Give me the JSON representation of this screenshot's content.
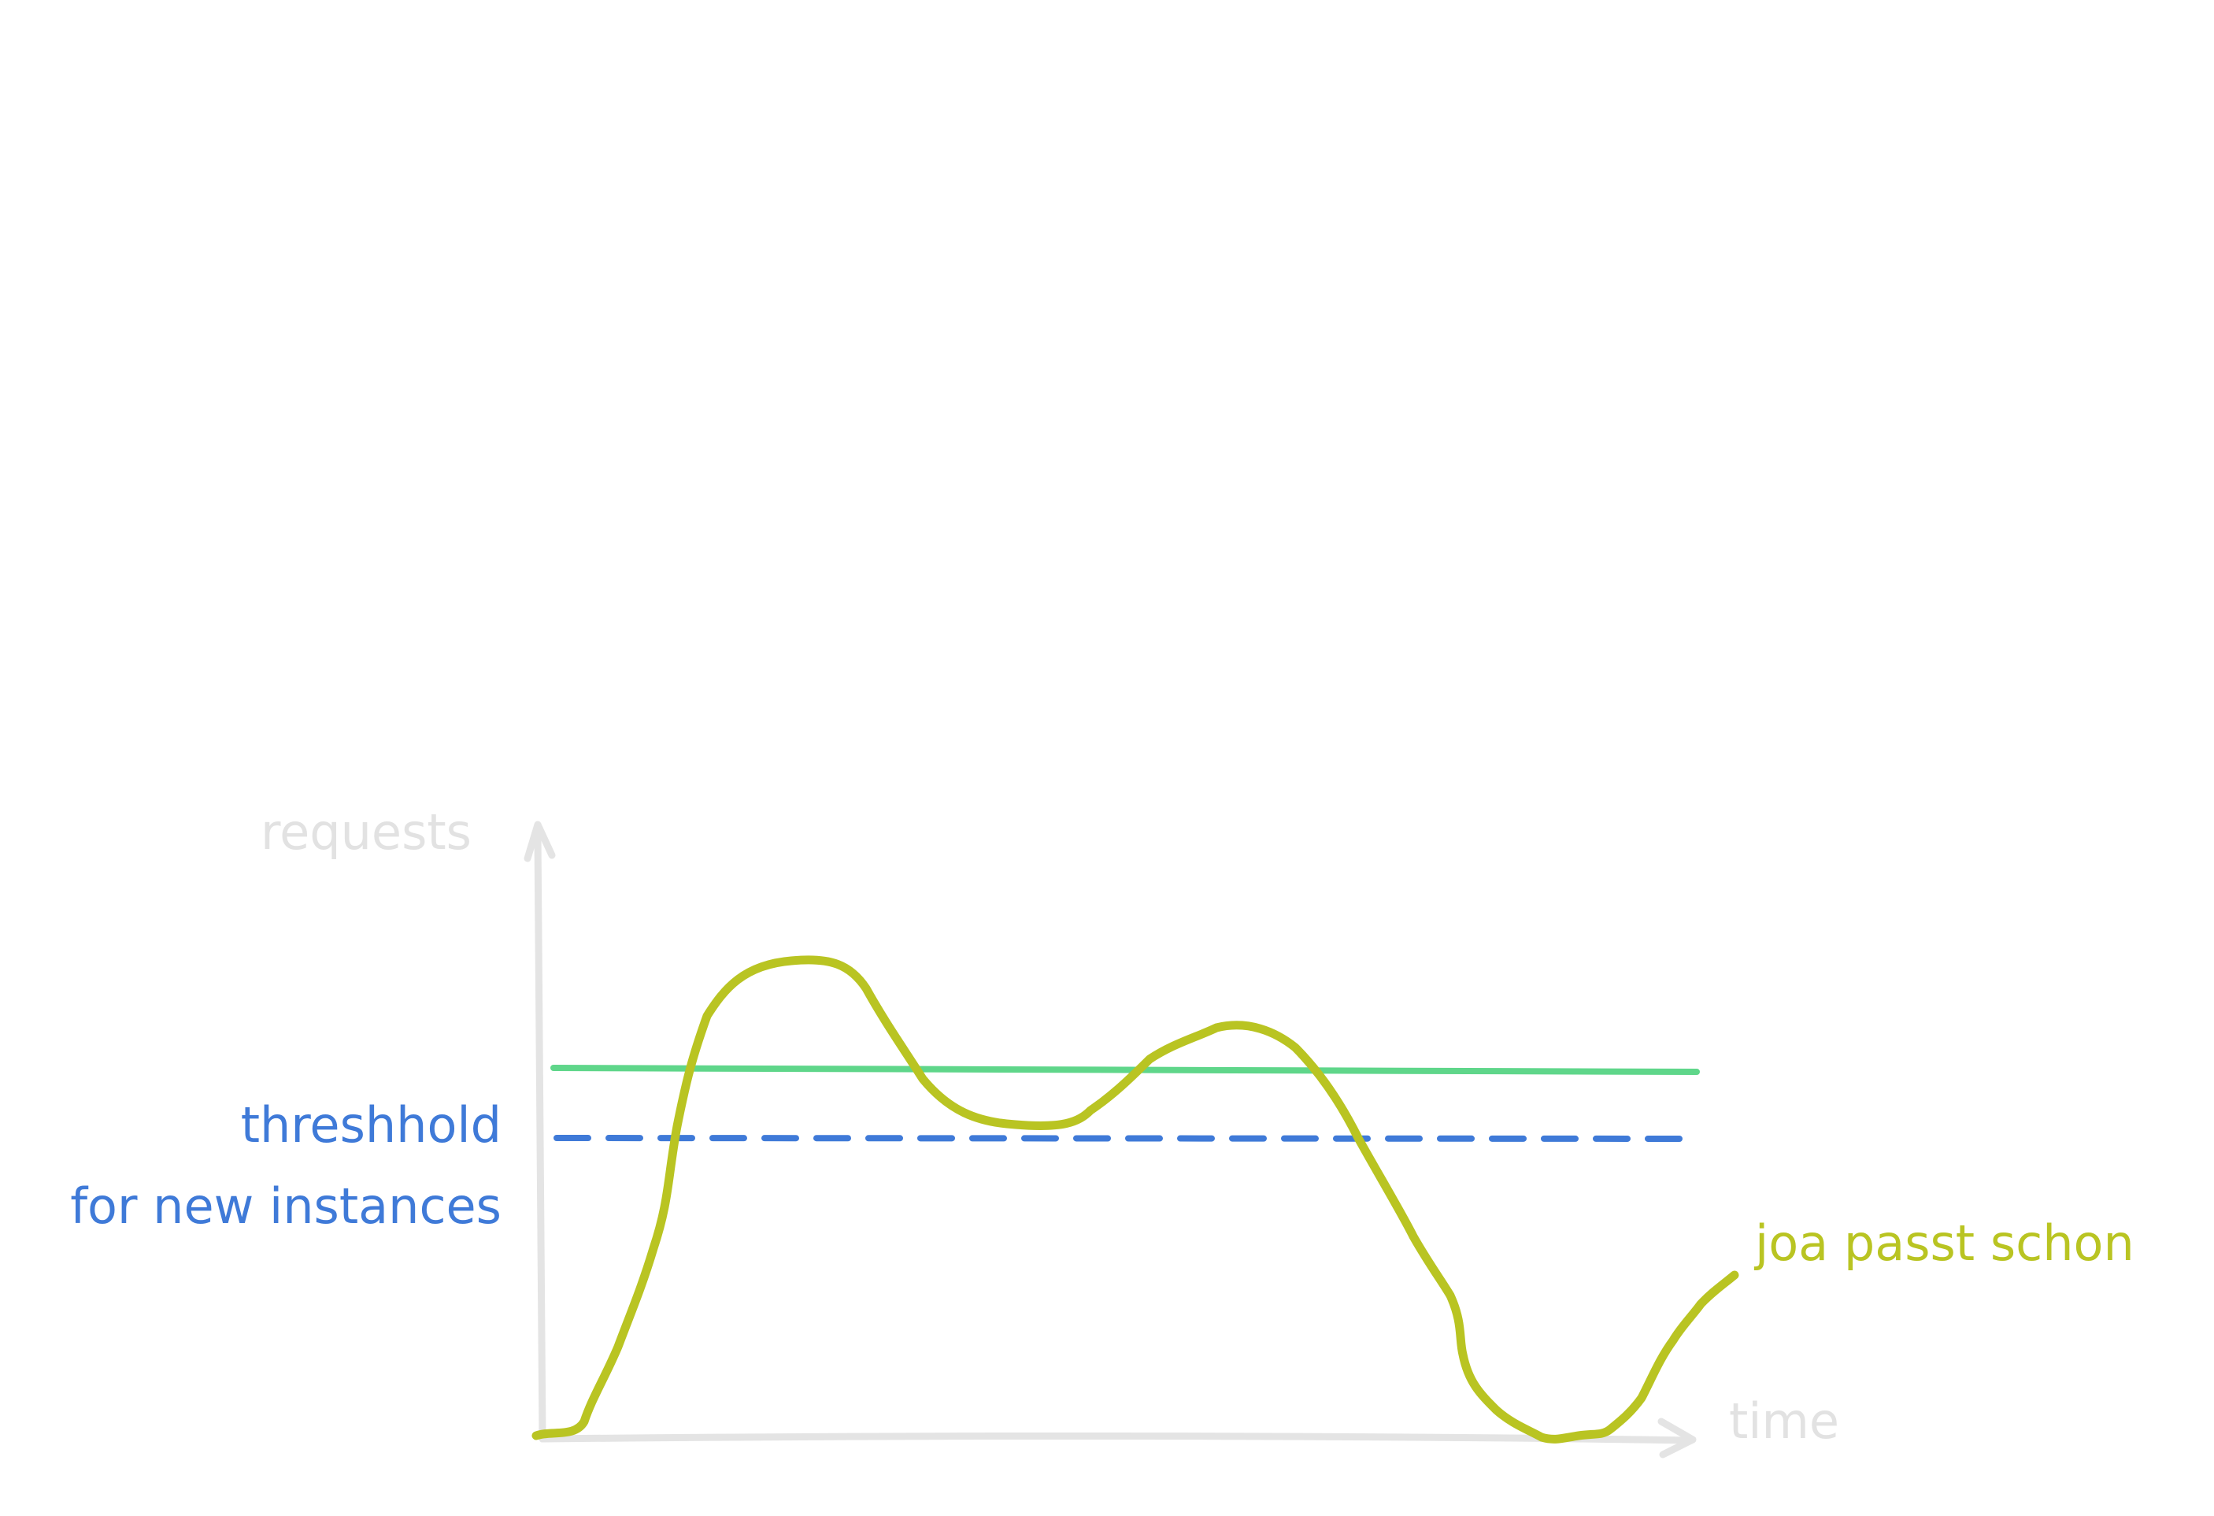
{
  "labels": {
    "y_axis": "requests",
    "x_axis": "time",
    "threshold_line1": "threshhold",
    "threshold_line2": "for new instances",
    "curve": "joa passt schon"
  },
  "colors": {
    "axis": "#e4e4e4",
    "axis_text": "#e2e2e2",
    "threshold": "#3f7ad8",
    "capacity": "#5fd68a",
    "curve": "#b9c422",
    "background": "#ffffff"
  }
}
